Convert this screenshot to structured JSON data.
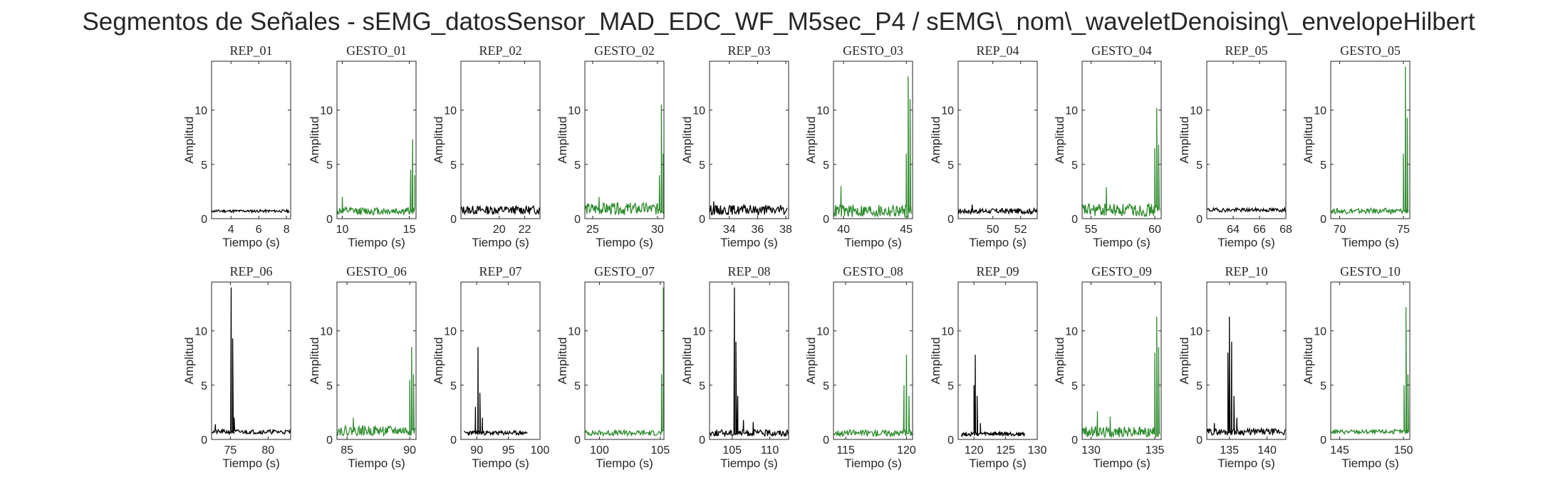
{
  "figure": {
    "title": "Segmentos de Señales - sEMG_datosSensor_MAD_EDC_WF_M5sec_P4 / sEMG\\_nom\\_waveletDenoising\\_envelopeHilbert"
  },
  "colors": {
    "rep": "#000000",
    "gesto": "#2e8b2e",
    "axis": "#262626"
  },
  "chart_data": [
    {
      "type": "line",
      "title": "REP_01",
      "kind": "rep",
      "xlabel": "Tiempo (s)",
      "ylabel": "Amplitud",
      "xlim": [
        2.6,
        8.3
      ],
      "ylim": [
        0,
        14.5
      ],
      "xticks": [
        4,
        6,
        8
      ],
      "yticks": [
        0,
        5,
        10
      ],
      "x_range": [
        2.6,
        8.2
      ],
      "baseline": 0.7,
      "noise": 0.12,
      "spikes": [],
      "seed": 11
    },
    {
      "type": "line",
      "title": "GESTO_01",
      "kind": "gesto",
      "xlabel": "Tiempo (s)",
      "ylabel": "Amplitud",
      "xlim": [
        9.6,
        15.5
      ],
      "ylim": [
        0,
        14.5
      ],
      "xticks": [
        10,
        15
      ],
      "yticks": [
        0,
        5,
        10
      ],
      "x_range": [
        9.6,
        15.4
      ],
      "baseline": 0.7,
      "noise": 0.35,
      "spikes": [
        [
          10.0,
          2.0
        ],
        [
          15.1,
          4.5
        ],
        [
          15.25,
          7.3
        ],
        [
          15.4,
          4.0
        ]
      ],
      "seed": 12
    },
    {
      "type": "line",
      "title": "REP_02",
      "kind": "rep",
      "xlabel": "Tiempo (s)",
      "ylabel": "Amplitud",
      "xlim": [
        17.0,
        23.2
      ],
      "ylim": [
        0,
        14.5
      ],
      "xticks": [
        20,
        22
      ],
      "yticks": [
        0,
        5,
        10
      ],
      "x_range": [
        17.0,
        23.2
      ],
      "baseline": 0.8,
      "noise": 0.4,
      "spikes": [],
      "seed": 13
    },
    {
      "type": "line",
      "title": "GESTO_02",
      "kind": "gesto",
      "xlabel": "Tiempo (s)",
      "ylabel": "Amplitud",
      "xlim": [
        24.4,
        30.5
      ],
      "ylim": [
        0,
        14.5
      ],
      "xticks": [
        25,
        30
      ],
      "yticks": [
        0,
        5,
        10
      ],
      "x_range": [
        24.4,
        30.5
      ],
      "baseline": 0.9,
      "noise": 0.55,
      "spikes": [
        [
          25.5,
          2.0
        ],
        [
          30.15,
          4.0
        ],
        [
          30.3,
          10.5
        ],
        [
          30.45,
          6.0
        ]
      ],
      "seed": 14
    },
    {
      "type": "line",
      "title": "REP_03",
      "kind": "rep",
      "xlabel": "Tiempo (s)",
      "ylabel": "Amplitud",
      "xlim": [
        32.6,
        38.2
      ],
      "ylim": [
        0,
        14.5
      ],
      "xticks": [
        34,
        36,
        38
      ],
      "yticks": [
        0,
        5,
        10
      ],
      "x_range": [
        32.6,
        38.1
      ],
      "baseline": 0.8,
      "noise": 0.45,
      "spikes": [
        [
          32.9,
          1.6
        ]
      ],
      "seed": 15
    },
    {
      "type": "line",
      "title": "GESTO_03",
      "kind": "gesto",
      "xlabel": "Tiempo (s)",
      "ylabel": "Amplitud",
      "xlim": [
        39.2,
        45.5
      ],
      "ylim": [
        0,
        14.5
      ],
      "xticks": [
        40,
        45
      ],
      "yticks": [
        0,
        5,
        10
      ],
      "x_range": [
        39.2,
        45.4
      ],
      "baseline": 0.7,
      "noise": 0.6,
      "spikes": [
        [
          39.8,
          3.0
        ],
        [
          45.0,
          6.0
        ],
        [
          45.15,
          13.1
        ],
        [
          45.3,
          11.0
        ]
      ],
      "seed": 16
    },
    {
      "type": "line",
      "title": "REP_04",
      "kind": "rep",
      "xlabel": "Tiempo (s)",
      "ylabel": "Amplitud",
      "xlim": [
        47.5,
        53.2
      ],
      "ylim": [
        0,
        14.5
      ],
      "xticks": [
        50,
        52
      ],
      "yticks": [
        0,
        5,
        10
      ],
      "x_range": [
        47.5,
        53.2
      ],
      "baseline": 0.7,
      "noise": 0.25,
      "spikes": [
        [
          48.5,
          1.3
        ]
      ],
      "seed": 17
    },
    {
      "type": "line",
      "title": "GESTO_04",
      "kind": "gesto",
      "xlabel": "Tiempo (s)",
      "ylabel": "Amplitud",
      "xlim": [
        54.3,
        60.5
      ],
      "ylim": [
        0,
        14.5
      ],
      "xticks": [
        55,
        60
      ],
      "yticks": [
        0,
        5,
        10
      ],
      "x_range": [
        54.3,
        60.4
      ],
      "baseline": 0.8,
      "noise": 0.6,
      "spikes": [
        [
          56.2,
          2.9
        ],
        [
          60.0,
          6.5
        ],
        [
          60.15,
          10.2
        ],
        [
          60.3,
          6.8
        ]
      ],
      "seed": 18
    },
    {
      "type": "line",
      "title": "REP_05",
      "kind": "rep",
      "xlabel": "Tiempo (s)",
      "ylabel": "Amplitud",
      "xlim": [
        62.0,
        68.0
      ],
      "ylim": [
        0,
        14.5
      ],
      "xticks": [
        64,
        66,
        68
      ],
      "yticks": [
        0,
        5,
        10
      ],
      "x_range": [
        62.0,
        68.0
      ],
      "baseline": 0.8,
      "noise": 0.18,
      "spikes": [],
      "seed": 19
    },
    {
      "type": "line",
      "title": "GESTO_05",
      "kind": "gesto",
      "xlabel": "Tiempo (s)",
      "ylabel": "Amplitud",
      "xlim": [
        69.3,
        75.5
      ],
      "ylim": [
        0,
        14.5
      ],
      "xticks": [
        70,
        75
      ],
      "yticks": [
        0,
        5,
        10
      ],
      "x_range": [
        69.3,
        75.4
      ],
      "baseline": 0.7,
      "noise": 0.25,
      "spikes": [
        [
          75.0,
          6.0
        ],
        [
          75.15,
          14.0
        ],
        [
          75.3,
          9.3
        ]
      ],
      "seed": 20
    },
    {
      "type": "line",
      "title": "REP_06",
      "kind": "rep",
      "xlabel": "Tiempo (s)",
      "ylabel": "Amplitud",
      "xlim": [
        72.5,
        83.0
      ],
      "ylim": [
        0,
        14.5
      ],
      "xticks": [
        75,
        80
      ],
      "yticks": [
        0,
        5,
        10
      ],
      "x_range": [
        72.5,
        83.0
      ],
      "baseline": 0.7,
      "noise": 0.2,
      "spikes": [
        [
          73.0,
          1.4
        ],
        [
          75.1,
          14.0
        ],
        [
          75.3,
          9.3
        ],
        [
          75.5,
          2.0
        ]
      ],
      "seed": 21
    },
    {
      "type": "line",
      "title": "GESTO_06",
      "kind": "gesto",
      "xlabel": "Tiempo (s)",
      "ylabel": "Amplitud",
      "xlim": [
        84.2,
        90.5
      ],
      "ylim": [
        0,
        14.5
      ],
      "xticks": [
        85,
        90
      ],
      "yticks": [
        0,
        5,
        10
      ],
      "x_range": [
        84.2,
        90.4
      ],
      "baseline": 0.8,
      "noise": 0.45,
      "spikes": [
        [
          85.5,
          2.0
        ],
        [
          90.0,
          5.5
        ],
        [
          90.15,
          8.5
        ],
        [
          90.3,
          6.0
        ]
      ],
      "seed": 22
    },
    {
      "type": "line",
      "title": "REP_07",
      "kind": "rep",
      "xlabel": "Tiempo (s)",
      "ylabel": "Amplitud",
      "xlim": [
        87.5,
        100.0
      ],
      "ylim": [
        0,
        14.5
      ],
      "xticks": [
        90,
        95,
        100
      ],
      "yticks": [
        0,
        5,
        10
      ],
      "x_range": [
        88.0,
        98.0
      ],
      "baseline": 0.6,
      "noise": 0.2,
      "spikes": [
        [
          89.8,
          3.0
        ],
        [
          90.2,
          8.5
        ],
        [
          90.5,
          4.3
        ],
        [
          90.9,
          2.0
        ]
      ],
      "seed": 23
    },
    {
      "type": "line",
      "title": "GESTO_07",
      "kind": "gesto",
      "xlabel": "Tiempo (s)",
      "ylabel": "Amplitud",
      "xlim": [
        98.8,
        105.3
      ],
      "ylim": [
        0,
        14.5
      ],
      "xticks": [
        100,
        105
      ],
      "yticks": [
        0,
        5,
        10
      ],
      "x_range": [
        98.8,
        105.25
      ],
      "baseline": 0.6,
      "noise": 0.25,
      "spikes": [
        [
          105.1,
          6.0
        ],
        [
          105.25,
          14.0
        ]
      ],
      "seed": 24
    },
    {
      "type": "line",
      "title": "REP_08",
      "kind": "rep",
      "xlabel": "Tiempo (s)",
      "ylabel": "Amplitud",
      "xlim": [
        102.0,
        112.5
      ],
      "ylim": [
        0,
        14.5
      ],
      "xticks": [
        105,
        110
      ],
      "yticks": [
        0,
        5,
        10
      ],
      "x_range": [
        102.0,
        112.5
      ],
      "baseline": 0.6,
      "noise": 0.3,
      "spikes": [
        [
          105.3,
          14.0
        ],
        [
          105.5,
          9.0
        ],
        [
          105.75,
          4.0
        ],
        [
          106.5,
          1.8
        ],
        [
          107.8,
          1.6
        ]
      ],
      "seed": 25
    },
    {
      "type": "line",
      "title": "GESTO_08",
      "kind": "gesto",
      "xlabel": "Tiempo (s)",
      "ylabel": "Amplitud",
      "xlim": [
        114.0,
        120.5
      ],
      "ylim": [
        0,
        14.5
      ],
      "xticks": [
        115,
        120
      ],
      "yticks": [
        0,
        5,
        10
      ],
      "x_range": [
        114.0,
        120.45
      ],
      "baseline": 0.6,
      "noise": 0.3,
      "spikes": [
        [
          119.8,
          5.0
        ],
        [
          120.0,
          7.8
        ],
        [
          120.2,
          4.0
        ]
      ],
      "seed": 26
    },
    {
      "type": "line",
      "title": "REP_09",
      "kind": "rep",
      "xlabel": "Tiempo (s)",
      "ylabel": "Amplitud",
      "xlim": [
        117.5,
        130.0
      ],
      "ylim": [
        0,
        14.5
      ],
      "xticks": [
        120,
        125,
        130
      ],
      "yticks": [
        0,
        5,
        10
      ],
      "x_range": [
        118.0,
        128.0
      ],
      "baseline": 0.5,
      "noise": 0.2,
      "spikes": [
        [
          120.0,
          5.0
        ],
        [
          120.2,
          7.8
        ],
        [
          120.5,
          4.0
        ],
        [
          121.0,
          1.5
        ]
      ],
      "seed": 27
    },
    {
      "type": "line",
      "title": "GESTO_09",
      "kind": "gesto",
      "xlabel": "Tiempo (s)",
      "ylabel": "Amplitud",
      "xlim": [
        129.3,
        135.5
      ],
      "ylim": [
        0,
        14.5
      ],
      "xticks": [
        130,
        135
      ],
      "yticks": [
        0,
        5,
        10
      ],
      "x_range": [
        129.3,
        135.4
      ],
      "baseline": 0.7,
      "noise": 0.5,
      "spikes": [
        [
          130.5,
          2.6
        ],
        [
          131.5,
          2.1
        ],
        [
          135.0,
          8.0
        ],
        [
          135.15,
          11.3
        ],
        [
          135.3,
          8.5
        ]
      ],
      "seed": 28
    },
    {
      "type": "line",
      "title": "REP_10",
      "kind": "rep",
      "xlabel": "Tiempo (s)",
      "ylabel": "Amplitud",
      "xlim": [
        132.0,
        142.5
      ],
      "ylim": [
        0,
        14.5
      ],
      "xticks": [
        135,
        140
      ],
      "yticks": [
        0,
        5,
        10
      ],
      "x_range": [
        132.0,
        142.5
      ],
      "baseline": 0.7,
      "noise": 0.3,
      "spikes": [
        [
          133.0,
          1.5
        ],
        [
          134.8,
          8.0
        ],
        [
          135.0,
          11.3
        ],
        [
          135.3,
          9.0
        ],
        [
          135.6,
          4.0
        ],
        [
          136.0,
          2.0
        ]
      ],
      "seed": 29
    },
    {
      "type": "line",
      "title": "GESTO_10",
      "kind": "gesto",
      "xlabel": "Tiempo (s)",
      "ylabel": "Amplitud",
      "xlim": [
        144.3,
        150.5
      ],
      "ylim": [
        0,
        14.5
      ],
      "xticks": [
        145,
        150
      ],
      "yticks": [
        0,
        5,
        10
      ],
      "x_range": [
        144.3,
        150.4
      ],
      "baseline": 0.7,
      "noise": 0.2,
      "spikes": [
        [
          150.05,
          5.0
        ],
        [
          150.2,
          12.2
        ],
        [
          150.35,
          6.0
        ]
      ],
      "seed": 30
    }
  ]
}
